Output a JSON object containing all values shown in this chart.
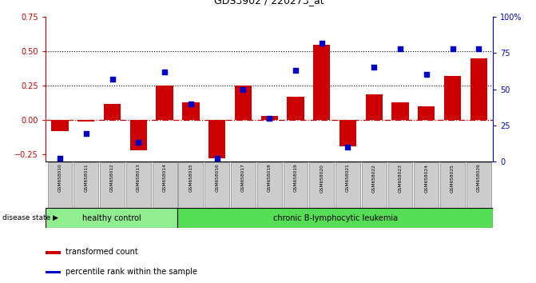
{
  "title": "GDS3902 / 220273_at",
  "samples": [
    "GSM658010",
    "GSM658011",
    "GSM658012",
    "GSM658013",
    "GSM658014",
    "GSM658015",
    "GSM658016",
    "GSM658017",
    "GSM658018",
    "GSM658019",
    "GSM658020",
    "GSM658021",
    "GSM658022",
    "GSM658023",
    "GSM658024",
    "GSM658025",
    "GSM658026"
  ],
  "bar_values": [
    -0.08,
    -0.01,
    0.12,
    -0.22,
    0.25,
    0.13,
    -0.28,
    0.25,
    0.03,
    0.17,
    0.55,
    -0.19,
    0.19,
    0.13,
    0.1,
    0.32,
    0.45
  ],
  "percentile_values": [
    2,
    19,
    57,
    13,
    62,
    40,
    2,
    50,
    30,
    63,
    82,
    10,
    65,
    78,
    60,
    78,
    78
  ],
  "bar_color": "#CC0000",
  "dot_color": "#0000CC",
  "ylim_left": [
    -0.3,
    0.75
  ],
  "ylim_right": [
    0,
    100
  ],
  "yticks_left": [
    -0.25,
    0.0,
    0.25,
    0.5,
    0.75
  ],
  "yticks_right": [
    0,
    25,
    50,
    75,
    100
  ],
  "ytick_labels_right": [
    "0",
    "25",
    "50",
    "75",
    "100%"
  ],
  "hline_y": [
    0.25,
    0.5
  ],
  "zero_line_y": 0.0,
  "healthy_count": 5,
  "healthy_label": "healthy control",
  "disease_label": "chronic B-lymphocytic leukemia",
  "disease_state_label": "disease state",
  "legend_bar_label": "transformed count",
  "legend_dot_label": "percentile rank within the sample",
  "healthy_color": "#90EE90",
  "disease_color": "#55DD55",
  "label_bg_color": "#CCCCCC",
  "background_color": "#FFFFFF"
}
